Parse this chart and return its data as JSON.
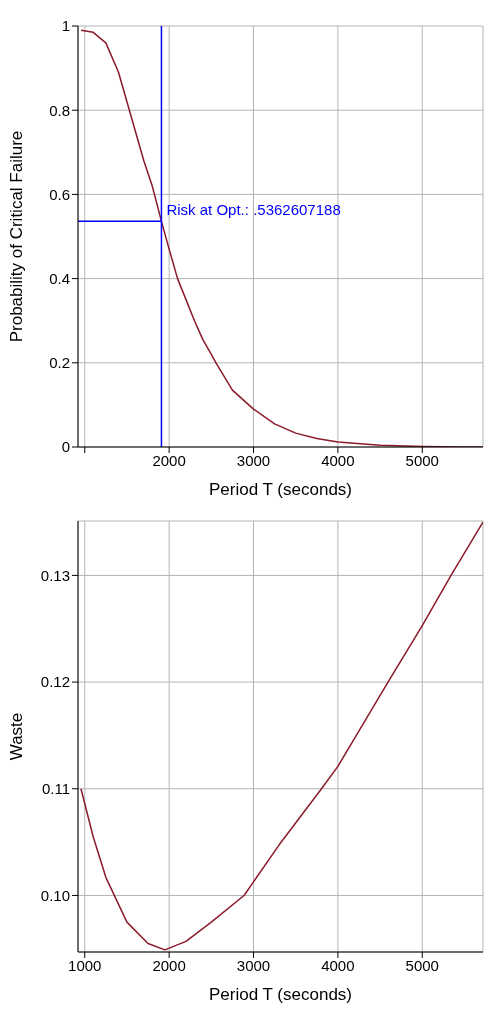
{
  "chart_data": [
    {
      "type": "line",
      "xlabel": "Period T (seconds)",
      "ylabel": "Probability of Critical Failure",
      "series": [
        {
          "color": "#8b1a2b",
          "x": [
            955,
            1100,
            1250,
            1400,
            1500,
            1600,
            1700,
            1800,
            1909,
            2000,
            2100,
            2200,
            2300,
            2400,
            2500,
            2555,
            2750,
            3000,
            3250,
            3500,
            3750,
            4000,
            4500,
            5000,
            5500,
            5720
          ],
          "values": [
            0.99,
            0.985,
            0.96,
            0.89,
            0.82,
            0.75,
            0.68,
            0.62,
            0.536,
            0.47,
            0.4,
            0.35,
            0.3,
            0.255,
            0.22,
            0.2,
            0.135,
            0.09,
            0.055,
            0.033,
            0.02,
            0.012,
            0.004,
            0.001,
            0,
            0
          ]
        }
      ],
      "xlim": [
        920,
        5720
      ],
      "xticks": [
        {
          "value": 1000,
          "label": null
        },
        2000,
        3000,
        4000,
        5000
      ],
      "ylim": [
        0,
        1
      ],
      "yticks": [
        0,
        0.2,
        0.4,
        0.6,
        0.8,
        1
      ],
      "ref_lines": [
        {
          "axis": "x",
          "value": 1909,
          "color": "#0000ff"
        },
        {
          "axis": "y",
          "value": 0.5362607188,
          "label": "Risk at Opt.: .5362607188",
          "color": "#0000ff"
        }
      ],
      "grid": true,
      "marker": "none",
      "line_style": "solid",
      "legend": false
    },
    {
      "type": "line",
      "xlabel": "Period T (seconds)",
      "ylabel": "Waste",
      "series": [
        {
          "color": "#8b1a2b",
          "x": [
            955,
            1100,
            1250,
            1500,
            1750,
            1950,
            2200,
            2500,
            2888,
            3300,
            3806,
            4000,
            4594,
            5000,
            5341,
            5720
          ],
          "values": [
            0.11,
            0.1055,
            0.1017,
            0.0975,
            0.0955,
            0.0949,
            0.0957,
            0.0975,
            0.1,
            0.1047,
            0.11,
            0.1121,
            0.12,
            0.1253,
            0.13,
            0.135
          ]
        }
      ],
      "xlim": [
        920,
        5720
      ],
      "xticks": [
        1000,
        2000,
        3000,
        4000,
        5000
      ],
      "ylim": [
        0.0947,
        0.1351
      ],
      "yticks": [
        {
          "value": 0.1,
          "label": "0.10"
        },
        0.11,
        0.12,
        0.13
      ],
      "grid": true,
      "marker": "none",
      "line_style": "solid",
      "legend": false
    }
  ]
}
